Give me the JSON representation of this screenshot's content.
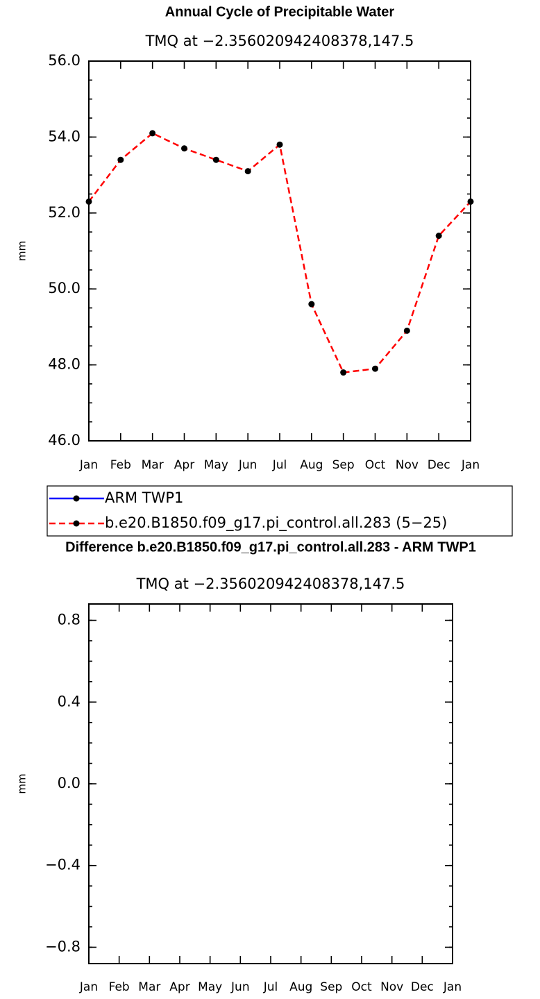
{
  "chart_data": [
    {
      "type": "line",
      "title": "Annual Cycle of Precipitable Water",
      "subtitle": "TMQ at −2.356020942408378,147.5",
      "ylabel": "mm",
      "categories": [
        "Jan",
        "Feb",
        "Mar",
        "Apr",
        "May",
        "Jun",
        "Jul",
        "Aug",
        "Sep",
        "Oct",
        "Nov",
        "Dec",
        "Jan"
      ],
      "ylim": [
        46,
        56
      ],
      "yticks": [
        {
          "value": 46,
          "label": "46.0"
        },
        {
          "value": 48,
          "label": "48.0"
        },
        {
          "value": 50,
          "label": "50.0"
        },
        {
          "value": 52,
          "label": "52.0"
        },
        {
          "value": 54,
          "label": "54.0"
        },
        {
          "value": 56,
          "label": "56.0"
        }
      ],
      "series": [
        {
          "name": "ARM TWP1",
          "color": "#0000ff",
          "marker_color": "#000000",
          "dash": false,
          "values": [
            null,
            null,
            null,
            null,
            null,
            null,
            null,
            null,
            null,
            null,
            null,
            null,
            null
          ]
        },
        {
          "name": "b.e20.B1850.f09_g17.pi_control.all.283 (5−25)",
          "color": "#ff0000",
          "marker_color": "#000000",
          "dash": true,
          "values": [
            52.3,
            53.4,
            54.1,
            53.7,
            53.4,
            53.1,
            53.8,
            49.6,
            47.8,
            47.9,
            48.9,
            51.4,
            52.3
          ]
        }
      ]
    },
    {
      "type": "line",
      "title": "Difference b.e20.B1850.f09_g17.pi_control.all.283 - ARM TWP1",
      "subtitle": "TMQ at −2.356020942408378,147.5",
      "ylabel": "mm",
      "categories": [
        "Jan",
        "Feb",
        "Mar",
        "Apr",
        "May",
        "Jun",
        "Jul",
        "Aug",
        "Sep",
        "Oct",
        "Nov",
        "Dec",
        "Jan"
      ],
      "ylim": [
        -0.88,
        0.88
      ],
      "yticks": [
        {
          "value": -0.8,
          "label": "−0.8"
        },
        {
          "value": -0.4,
          "label": "−0.4"
        },
        {
          "value": 0,
          "label": "0.0"
        },
        0.4,
        0.8
      ],
      "series": []
    }
  ]
}
